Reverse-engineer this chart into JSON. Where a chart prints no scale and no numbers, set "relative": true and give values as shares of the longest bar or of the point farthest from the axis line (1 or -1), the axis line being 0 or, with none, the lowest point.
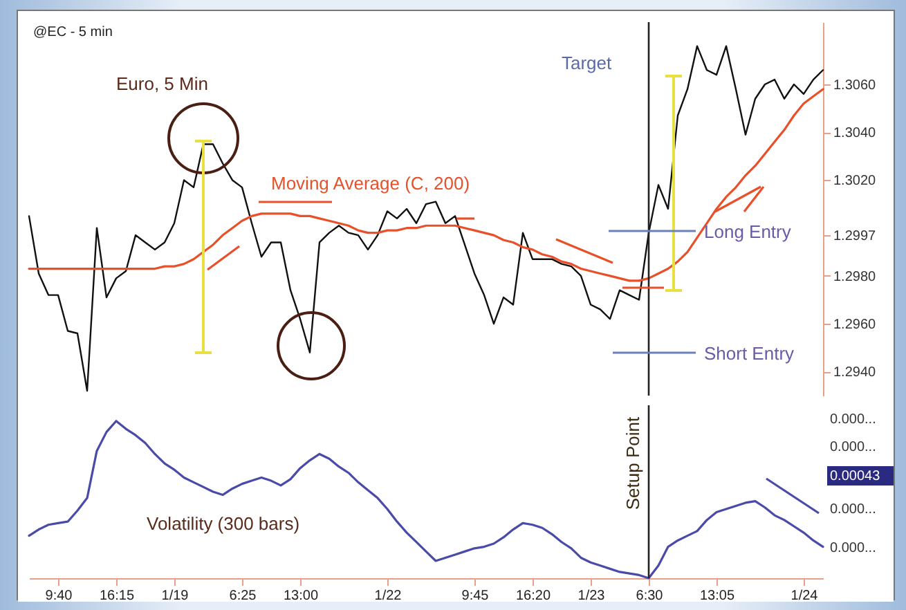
{
  "chart_data": [
    {
      "type": "line",
      "title": "@EC - 5 min",
      "annotations": [
        "Euro, 5 Min",
        "Target",
        "Long Entry",
        "Short Entry"
      ],
      "categories": [
        null,
        null,
        null,
        "9:40",
        null,
        null,
        null,
        null,
        null,
        "16:15",
        null,
        null,
        null,
        null,
        null,
        "1/19",
        null,
        null,
        null,
        null,
        null,
        null,
        "6:25",
        null,
        null,
        null,
        null,
        null,
        "13:00",
        null,
        null,
        null,
        null,
        null,
        null,
        null,
        null,
        "1/22",
        null,
        null,
        null,
        null,
        null,
        null,
        null,
        null,
        "9:45",
        null,
        null,
        null,
        null,
        null,
        "16:20",
        null,
        null,
        null,
        null,
        null,
        "1/23",
        null,
        null,
        null,
        null,
        null,
        "6:30",
        null,
        null,
        null,
        null,
        null,
        null,
        "13:05",
        null,
        null,
        null,
        null,
        null,
        null,
        null,
        null,
        "1/24",
        null,
        null
      ],
      "ylim": [
        1.293,
        1.3086
      ],
      "yticks": [
        {
          "value": 1.294,
          "label": "1.2940"
        },
        {
          "value": 1.296,
          "label": "1.2960"
        },
        {
          "value": 1.298,
          "label": "1.2980"
        },
        {
          "value": 1.2997,
          "label": "1.2997"
        },
        {
          "value": 1.302,
          "label": "1.3020"
        },
        {
          "value": 1.304,
          "label": "1.3040"
        },
        {
          "value": 1.306,
          "label": "1.3060"
        }
      ],
      "tick_labels": "y",
      "ref_lines": [
        {
          "axis": "x",
          "value": "6:30",
          "color": "#222222"
        }
      ],
      "series": [
        {
          "color": "#111111",
          "values": [
            1.3005,
            1.2981,
            1.2972,
            1.2972,
            1.2957,
            1.2956,
            1.2932,
            1.3,
            1.2971,
            1.2979,
            1.2982,
            1.2997,
            1.2994,
            1.2991,
            1.2994,
            1.3002,
            1.302,
            1.3017,
            1.3035,
            1.3035,
            1.3027,
            1.302,
            1.3017,
            1.3002,
            1.2988,
            1.2994,
            1.2994,
            1.2974,
            1.2962,
            1.2948,
            1.2994,
            1.2998,
            1.3001,
            1.2998,
            1.2997,
            1.2991,
            1.2997,
            1.3007,
            1.3004,
            1.3008,
            1.3002,
            1.301,
            1.3011,
            1.3002,
            1.3005,
            1.2993,
            1.2981,
            1.2972,
            1.296,
            1.2971,
            1.2968,
            1.2998,
            1.2987,
            1.2987,
            1.2987,
            1.2985,
            1.2984,
            1.298,
            1.2968,
            1.2966,
            1.2962,
            1.2974,
            1.2972,
            1.297,
            1.2998,
            1.3018,
            1.3008,
            1.3047,
            1.3058,
            1.3076,
            1.3066,
            1.3064,
            1.3076,
            1.3058,
            1.3039,
            1.3054,
            1.306,
            1.3062,
            1.3054,
            1.306,
            1.3056,
            1.3062,
            1.3066
          ]
        },
        {
          "name": "Moving Average (C, 200)",
          "color": "#e8502a",
          "values": [
            1.2983,
            1.2983,
            1.2983,
            1.2983,
            1.2983,
            1.2983,
            1.2983,
            1.2983,
            1.2983,
            1.2983,
            1.2983,
            1.2983,
            1.2983,
            1.2983,
            1.2984,
            1.2984,
            1.2985,
            1.2987,
            1.299,
            1.2993,
            1.2997,
            1.3,
            1.3003,
            1.3005,
            1.3006,
            1.3006,
            1.3006,
            1.3006,
            1.3005,
            1.3005,
            1.3004,
            1.3003,
            1.3002,
            1.3001,
            1.2999,
            1.2998,
            1.2998,
            1.2999,
            1.2999,
            1.3,
            1.3,
            1.3001,
            1.3001,
            1.3001,
            1.3001,
            1.3,
            1.2999,
            1.2998,
            1.2997,
            1.2995,
            1.2994,
            1.2992,
            1.2991,
            1.2989,
            1.2988,
            1.2986,
            1.2985,
            1.2983,
            1.2982,
            1.2981,
            1.298,
            1.2979,
            1.2978,
            1.2978,
            1.2979,
            1.2981,
            1.2983,
            1.2986,
            1.299,
            1.2996,
            1.3002,
            1.3008,
            1.3013,
            1.3017,
            1.3022,
            1.3026,
            1.3031,
            1.3036,
            1.3041,
            1.3047,
            1.3052,
            1.3055,
            1.3058
          ]
        }
      ]
    },
    {
      "type": "line",
      "relative": true,
      "annotations": [
        "0.000...",
        "0.000...",
        "0.00043",
        "0.000...",
        "0.000..."
      ],
      "categories": [
        null,
        null,
        null,
        "9:40",
        null,
        null,
        null,
        null,
        null,
        "16:15",
        null,
        null,
        null,
        null,
        null,
        "1/19",
        null,
        null,
        null,
        null,
        null,
        null,
        "6:25",
        null,
        null,
        null,
        null,
        null,
        "13:00",
        null,
        null,
        null,
        null,
        null,
        null,
        null,
        null,
        "1/22",
        null,
        null,
        null,
        null,
        null,
        null,
        null,
        null,
        "9:45",
        null,
        null,
        null,
        null,
        null,
        "16:20",
        null,
        null,
        null,
        null,
        null,
        "1/23",
        null,
        null,
        null,
        null,
        null,
        "6:30",
        null,
        null,
        null,
        null,
        null,
        null,
        "13:05",
        null,
        null,
        null,
        null,
        null,
        null,
        null,
        null,
        "1/24",
        null,
        null
      ],
      "tick_labels": "x",
      "ref_lines": [
        {
          "axis": "x",
          "value": "6:30",
          "label": "Setup Point",
          "color": "#222222"
        }
      ],
      "series": [
        {
          "name": "Volatility (300 bars)",
          "color": "#4a4aa8",
          "values": [
            0.27,
            0.31,
            0.34,
            0.35,
            0.36,
            0.43,
            0.51,
            0.81,
            0.93,
            1,
            0.95,
            0.91,
            0.86,
            0.79,
            0.73,
            0.69,
            0.64,
            0.61,
            0.58,
            0.55,
            0.53,
            0.57,
            0.6,
            0.62,
            0.64,
            0.62,
            0.59,
            0.63,
            0.7,
            0.75,
            0.79,
            0.76,
            0.71,
            0.67,
            0.61,
            0.56,
            0.51,
            0.44,
            0.36,
            0.29,
            0.23,
            0.17,
            0.11,
            0.13,
            0.15,
            0.17,
            0.19,
            0.2,
            0.22,
            0.26,
            0.31,
            0.35,
            0.34,
            0.32,
            0.28,
            0.23,
            0.19,
            0.13,
            0.1,
            0.08,
            0.06,
            0.04,
            0.03,
            0.02,
            0,
            0.08,
            0.2,
            0.24,
            0.27,
            0.3,
            0.37,
            0.42,
            0.44,
            0.46,
            0.48,
            0.49,
            0.45,
            0.4,
            0.37,
            0.33,
            0.29,
            0.24,
            0.2
          ]
        }
      ]
    }
  ]
}
